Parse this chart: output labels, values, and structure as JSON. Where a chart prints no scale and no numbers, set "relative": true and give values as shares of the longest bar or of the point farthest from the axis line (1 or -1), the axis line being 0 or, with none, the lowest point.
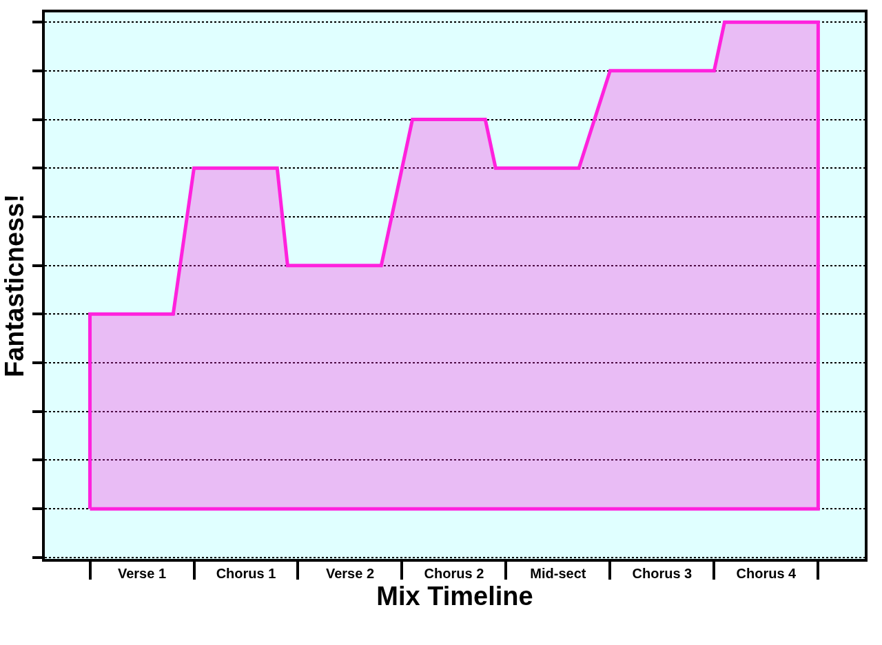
{
  "chart_data": {
    "type": "area",
    "relative": true,
    "xlabel": "Mix Timeline",
    "ylabel": "Fantasticness!",
    "categories": [
      null,
      null,
      null,
      null,
      null,
      "Verse 1",
      null,
      null,
      null,
      null,
      null,
      null,
      null,
      null,
      null,
      "Chorus 1",
      null,
      null,
      null,
      null,
      null,
      null,
      null,
      null,
      null,
      "Verse 2",
      null,
      null,
      null,
      null,
      null,
      null,
      null,
      null,
      null,
      "Chorus 2",
      null,
      null,
      null,
      null,
      null,
      null,
      null,
      null,
      null,
      "Mid-sect",
      null,
      null,
      null,
      null,
      null,
      null,
      null,
      null,
      null,
      "Chorus 3",
      null,
      null,
      null,
      null,
      null,
      null,
      null,
      null,
      null,
      "Chorus 4",
      null,
      null,
      null,
      null,
      null
    ],
    "series": [
      {
        "color": "#ff22dd",
        "values": [
          0.4,
          null,
          null,
          null,
          null,
          null,
          null,
          null,
          0.4,
          null,
          0.7,
          null,
          null,
          null,
          null,
          null,
          null,
          null,
          0.7,
          0.5,
          null,
          null,
          null,
          null,
          null,
          null,
          null,
          null,
          0.5,
          null,
          null,
          0.8,
          null,
          null,
          null,
          null,
          null,
          null,
          0.8,
          0.7,
          null,
          null,
          null,
          null,
          null,
          null,
          null,
          0.7,
          null,
          null,
          0.9,
          null,
          null,
          null,
          null,
          null,
          null,
          null,
          null,
          null,
          0.9,
          1,
          null,
          null,
          null,
          null,
          null,
          null,
          null,
          null,
          1
        ]
      }
    ],
    "grid": "y",
    "marker": "none",
    "line_style": "solid"
  }
}
